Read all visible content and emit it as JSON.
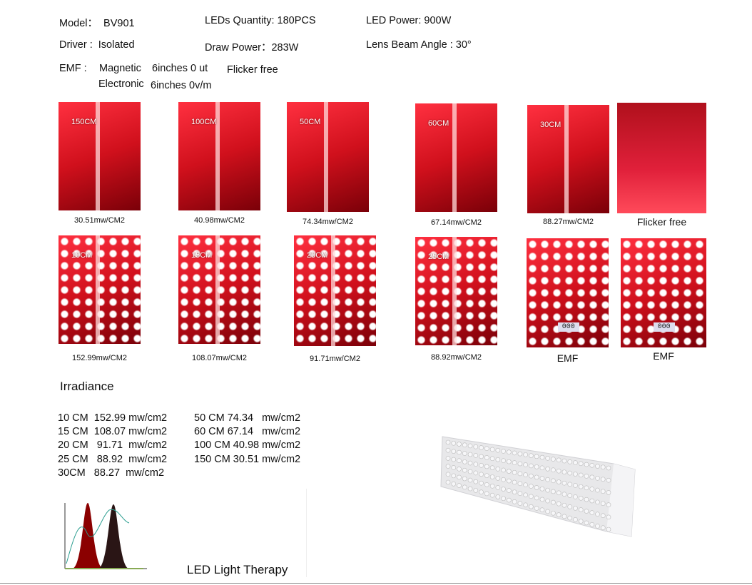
{
  "specs": {
    "model": "Model：  BV901",
    "leds": "LEDs Quantity: 180PCS",
    "power": "LED Power: 900W",
    "driver": "Driver :  Isolated",
    "draw": "Draw Power：283W",
    "beam": "Lens Beam Angle : 30°"
  },
  "emf": {
    "label": "EMF :",
    "magnetic": "Magnetic",
    "magnetic_value": "6inches 0 ut",
    "flicker": "Flicker free",
    "electronic": "Electronic",
    "electronic_value": "6inches 0v/m"
  },
  "photos": [
    {
      "tag": "150CM",
      "caption": "30.51mw/CM2"
    },
    {
      "tag": "100CM",
      "caption": "40.98mw/CM2"
    },
    {
      "tag": "50CM",
      "caption": "74.34mw/CM2"
    },
    {
      "tag": "60CM",
      "caption": "67.14mw/CM2"
    },
    {
      "tag": "30CM",
      "caption": "88.27mw/CM2"
    },
    {
      "caption": "Flicker free"
    },
    {
      "tag": "10CM",
      "caption": "152.99mw/CM2"
    },
    {
      "tag": "15CM",
      "caption": "108.07mw/CM2"
    },
    {
      "tag": "20CM",
      "caption": "91.71mw/CM2"
    },
    {
      "tag": "25CM",
      "caption": "88.92mw/CM2"
    },
    {
      "tag": "000",
      "caption": "EMF"
    },
    {
      "tag": "000",
      "caption": "EMF"
    }
  ],
  "irradiance": {
    "title": "Irradiance",
    "left": [
      "10 CM  152.99 mw/cm2",
      "15 CM  108.07 mw/cm2",
      "20 CM   91.71  mw/cm2",
      "25 CM   88.92  mw/cm2",
      "30CM   88.27  mw/cm2"
    ],
    "right": [
      "50 CM 74.34   mw/cm2",
      "60 CM 67.14   mw/cm2",
      "100 CM 40.98 mw/cm2",
      "150 CM 30.51 mw/cm2"
    ]
  },
  "spectrum_caption": "LED Light Therapy"
}
